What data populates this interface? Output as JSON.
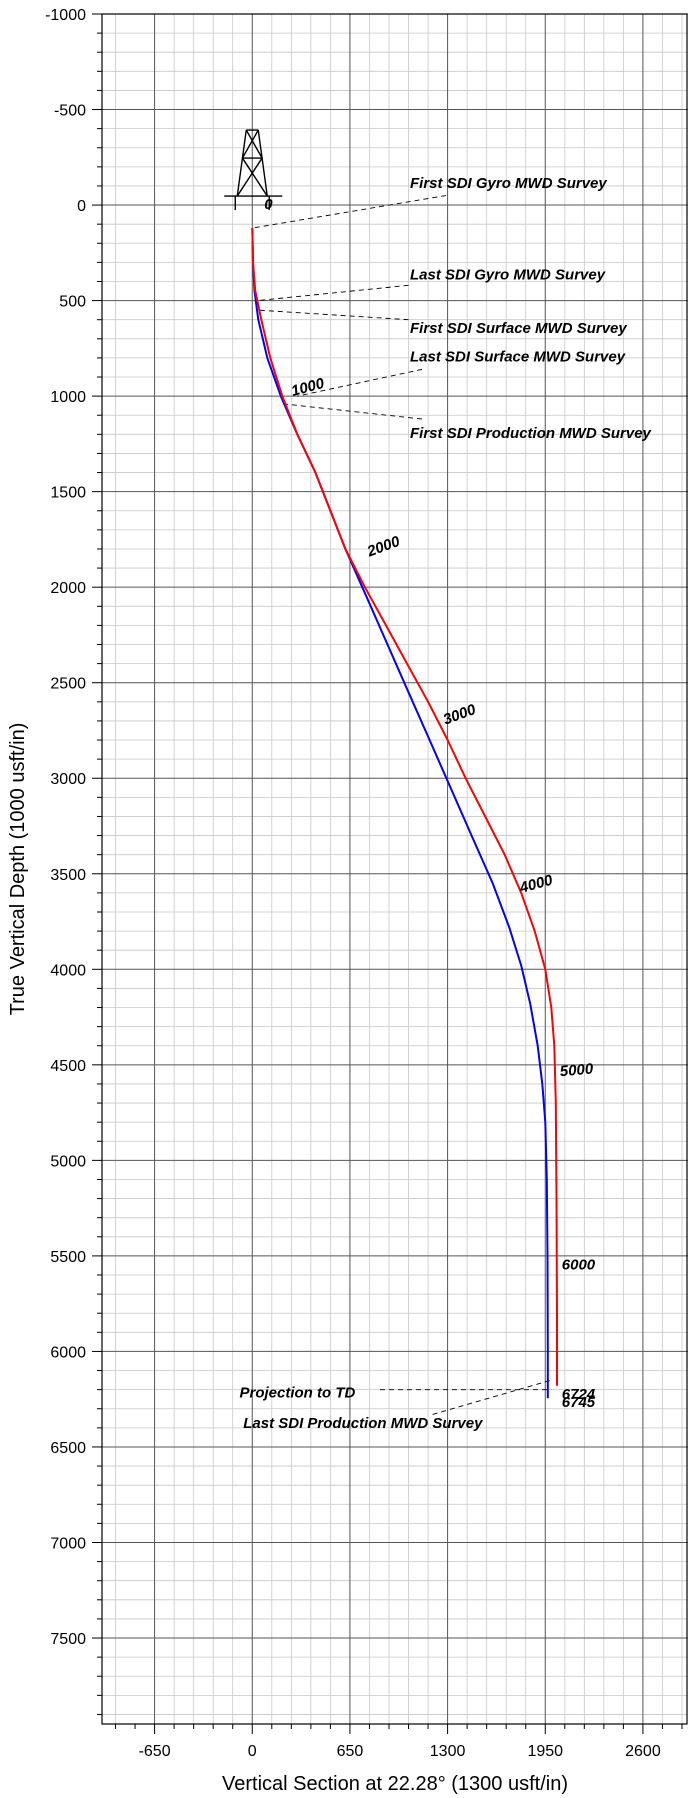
{
  "chart_data": {
    "type": "line",
    "xlabel": "Vertical Section at 22.28° (1300 usft/in)",
    "ylabel": "True Vertical Depth (1000 usft/in)",
    "xlim": [
      -1000,
      2900
    ],
    "ylim": [
      -1000,
      7950
    ],
    "y_inverted": true,
    "grid": true,
    "x_ticks": [
      -650,
      0,
      650,
      1300,
      1950,
      2600
    ],
    "x_tick_labels": [
      "-650",
      "0",
      "650",
      "1300",
      "1950",
      "2600"
    ],
    "y_ticks": [
      -1000,
      -500,
      0,
      500,
      1000,
      1500,
      2000,
      2500,
      3000,
      3500,
      4000,
      4500,
      5000,
      5500,
      6000,
      6500,
      7000,
      7500
    ],
    "y_tick_labels": [
      "-1000",
      "-500",
      "0",
      "500",
      "1000",
      "1500",
      "2000",
      "2500",
      "3000",
      "3500",
      "4000",
      "4500",
      "5000",
      "5500",
      "6000",
      "6500",
      "7000",
      "7500"
    ],
    "series": [
      {
        "color": "#0000ff",
        "x": [
          0,
          5,
          15,
          40,
          100,
          190,
          300,
          420,
          520,
          620,
          760,
          900,
          1040,
          1180,
          1320,
          1460,
          1600,
          1710,
          1790,
          1850,
          1900,
          1930,
          1950,
          1960,
          1965,
          1967,
          1967
        ],
        "y": [
          120,
          300,
          450,
          600,
          800,
          1000,
          1200,
          1400,
          1600,
          1800,
          2050,
          2300,
          2550,
          2800,
          3050,
          3300,
          3550,
          3780,
          3980,
          4180,
          4400,
          4600,
          4800,
          5100,
          5500,
          6000,
          6245
        ]
      },
      {
        "color": "#ff0000",
        "x": [
          0,
          5,
          20,
          60,
          120,
          200,
          300,
          420,
          520,
          620,
          750,
          890,
          1030,
          1170,
          1300,
          1420,
          1550,
          1680,
          1790,
          1880,
          1950,
          1990,
          2010,
          2020,
          2025,
          2028,
          2028
        ],
        "y": [
          120,
          300,
          450,
          600,
          800,
          1000,
          1200,
          1400,
          1600,
          1800,
          2000,
          2200,
          2400,
          2600,
          2800,
          3000,
          3200,
          3400,
          3600,
          3800,
          4000,
          4200,
          4400,
          4700,
          5200,
          5800,
          6180
        ]
      }
    ],
    "md_labels": [
      {
        "text": "0",
        "x": 80,
        "y": 20,
        "angle": 0
      },
      {
        "text": "1000",
        "x": 270,
        "y": 1000,
        "angle": -15
      },
      {
        "text": "2000",
        "x": 780,
        "y": 1840,
        "angle": -20
      },
      {
        "text": "3000",
        "x": 1285,
        "y": 2720,
        "angle": -20
      },
      {
        "text": "4000",
        "x": 1790,
        "y": 3600,
        "angle": -15
      },
      {
        "text": "5000",
        "x": 2050,
        "y": 4560,
        "angle": -5
      },
      {
        "text": "6000",
        "x": 2060,
        "y": 5570,
        "angle": 0
      },
      {
        "text": "6724",
        "x": 2060,
        "y": 6250,
        "angle": 0
      },
      {
        "text": "6745",
        "x": 2060,
        "y": 6290,
        "angle": 0
      }
    ],
    "annotations": [
      {
        "text": "First SDI Gyro MWD Survey",
        "label_x": 1050,
        "label_y": -90,
        "line": [
          [
            1290,
            -50
          ],
          [
            5,
            120
          ]
        ]
      },
      {
        "text": "Last SDI Gyro MWD Survey",
        "label_x": 1050,
        "label_y": 390,
        "line": [
          [
            1040,
            420
          ],
          [
            35,
            500
          ]
        ]
      },
      {
        "text": "First SDI Surface MWD Survey",
        "label_x": 1050,
        "label_y": 670,
        "line": [
          [
            1040,
            600
          ],
          [
            40,
            550
          ]
        ]
      },
      {
        "text": "Last SDI Surface MWD Survey",
        "label_x": 1050,
        "label_y": 820,
        "line": [
          [
            1130,
            860
          ],
          [
            300,
            1000
          ]
        ]
      },
      {
        "text": "First SDI Production MWD Survey",
        "label_x": 1050,
        "label_y": 1220,
        "line": [
          [
            1130,
            1120
          ],
          [
            200,
            1040
          ]
        ]
      },
      {
        "text": "Projection to TD",
        "label_x": -85,
        "label_y": 6240,
        "line": [
          [
            850,
            6200
          ],
          [
            1990,
            6200
          ]
        ]
      },
      {
        "text": "Last SDI Production MWD Survey",
        "label_x": -60,
        "label_y": 6400,
        "line": [
          [
            1200,
            6330
          ],
          [
            1990,
            6150
          ]
        ]
      }
    ],
    "rig_icon": {
      "name": "derrick-icon",
      "x": 0,
      "y": 0
    }
  }
}
